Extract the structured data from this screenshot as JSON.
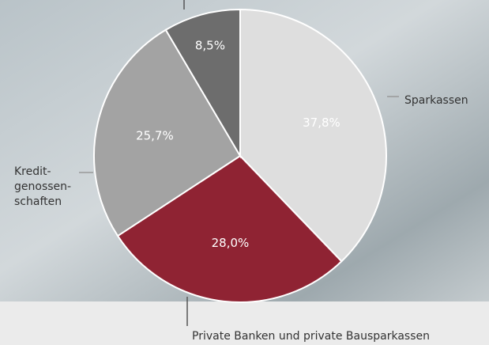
{
  "chart_data": {
    "type": "pie",
    "categories": [
      "Sparkassen",
      "Private Banken und private Bausparkassen",
      "Kredit-\ngenossen-\nschaften",
      null
    ],
    "values": [
      37.8,
      28.0,
      25.7,
      8.5
    ],
    "value_labels": [
      "37,8%",
      "28,0%",
      "25,7%",
      "8,5%"
    ],
    "colors": [
      "#dedede",
      "#8f2333",
      "#a3a3a3",
      "#6d6d6d"
    ]
  }
}
